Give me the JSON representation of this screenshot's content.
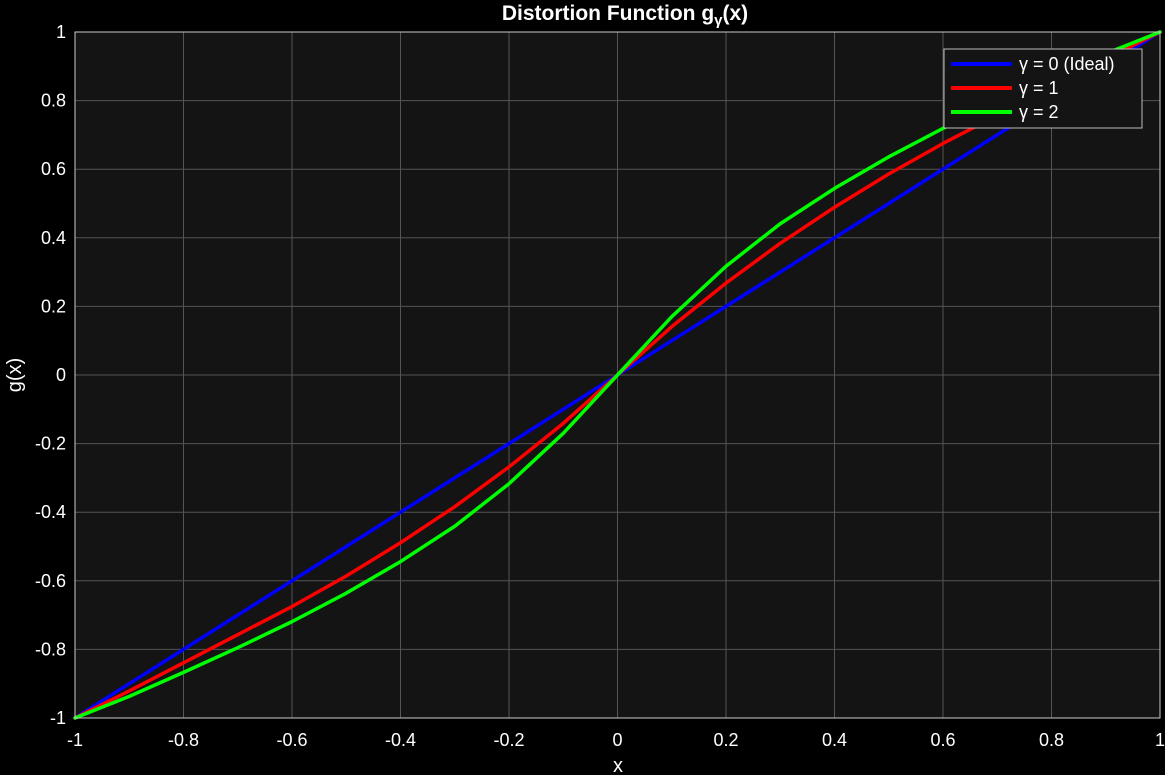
{
  "chart_data": {
    "type": "line",
    "title": "Distortion Function g",
    "title_subscript": "γ",
    "title_suffix": "(x)",
    "xlabel": "x",
    "ylabel": "g(x)",
    "xlim": [
      -1,
      1
    ],
    "ylim": [
      -1,
      1
    ],
    "xticks": [
      -1,
      -0.8,
      -0.6,
      -0.4,
      -0.2,
      0,
      0.2,
      0.4,
      0.6,
      0.8,
      1
    ],
    "yticks": [
      -1,
      -0.8,
      -0.6,
      -0.4,
      -0.2,
      0,
      0.2,
      0.4,
      0.6,
      0.8,
      1
    ],
    "xtick_labels": [
      "-1",
      "-0.8",
      "-0.6",
      "-0.4",
      "-0.2",
      "0",
      "0.2",
      "0.4",
      "0.6",
      "0.8",
      "1"
    ],
    "ytick_labels": [
      "-1",
      "-0.8",
      "-0.6",
      "-0.4",
      "-0.2",
      "0",
      "0.2",
      "0.4",
      "0.6",
      "0.8",
      "1"
    ],
    "grid": true,
    "legend_position": "top-right",
    "background": "#000000",
    "axes_background": "#141414",
    "grid_color": "#555555",
    "x": [
      -1,
      -0.9,
      -0.8,
      -0.7,
      -0.6,
      -0.5,
      -0.4,
      -0.3,
      -0.2,
      -0.1,
      0,
      0.1,
      0.2,
      0.3,
      0.4,
      0.5,
      0.6,
      0.7,
      0.8,
      0.9,
      1
    ],
    "series": [
      {
        "name": "γ = 0 (Ideal)",
        "color": "#0000ff",
        "values": [
          -1,
          -0.9,
          -0.8,
          -0.7,
          -0.6,
          -0.5,
          -0.4,
          -0.3,
          -0.2,
          -0.1,
          0,
          0.1,
          0.2,
          0.3,
          0.4,
          0.5,
          0.6,
          0.7,
          0.8,
          0.9,
          1
        ]
      },
      {
        "name": "γ = 1",
        "color": "#ff0000",
        "values": [
          -1,
          -0.921,
          -0.839,
          -0.757,
          -0.675,
          -0.586,
          -0.489,
          -0.384,
          -0.268,
          -0.141,
          0,
          0.141,
          0.268,
          0.384,
          0.489,
          0.586,
          0.675,
          0.757,
          0.839,
          0.921,
          1
        ]
      },
      {
        "name": "γ = 2",
        "color": "#00ff00",
        "values": [
          -1,
          -0.937,
          -0.867,
          -0.795,
          -0.719,
          -0.636,
          -0.544,
          -0.441,
          -0.317,
          -0.17,
          0,
          0.17,
          0.317,
          0.441,
          0.544,
          0.636,
          0.719,
          0.795,
          0.867,
          0.937,
          1
        ]
      }
    ]
  }
}
